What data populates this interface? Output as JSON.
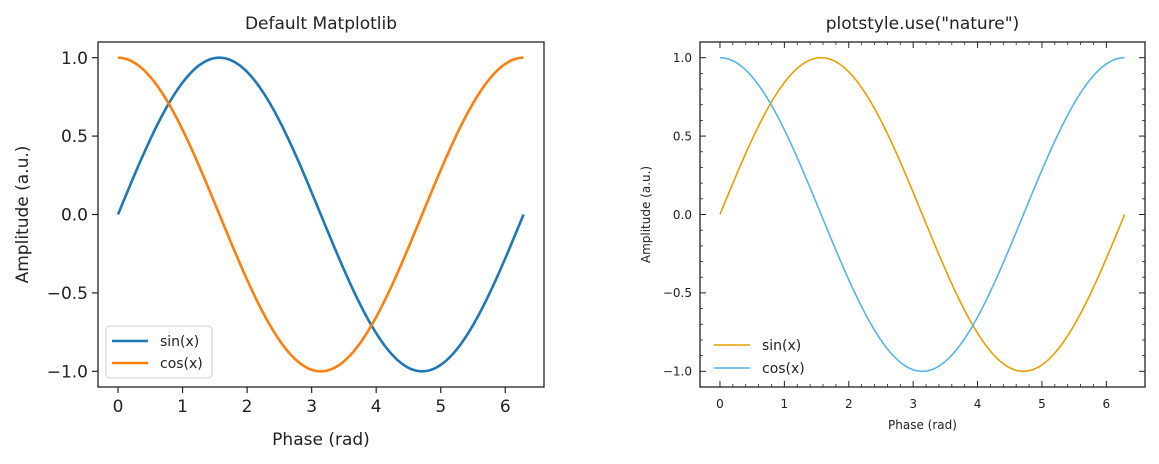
{
  "chart_data": [
    {
      "type": "line",
      "title": "Default Matplotlib",
      "xlabel": "Phase (rad)",
      "ylabel": "Amplitude (a.u.)",
      "xlim": [
        -0.31,
        6.6
      ],
      "ylim": [
        -1.1,
        1.1
      ],
      "xticks": [
        0,
        1,
        2,
        3,
        4,
        5,
        6
      ],
      "xtick_labels": [
        "0",
        "1",
        "2",
        "3",
        "4",
        "5",
        "6"
      ],
      "yticks": [
        1.0,
        0.5,
        0.0,
        -0.5,
        -1.0
      ],
      "ytick_labels": [
        "1.0",
        "0.5",
        "0.0",
        "−0.5",
        "−1.0"
      ],
      "grid": false,
      "legend_position": "lower-left",
      "legend_frame": true,
      "minor_ticks": false,
      "series": [
        {
          "name": "sin(x)",
          "function": "sin",
          "x_range": [
            0,
            6.283
          ],
          "color": "#1f77b4"
        },
        {
          "name": "cos(x)",
          "function": "cos",
          "x_range": [
            0,
            6.283
          ],
          "color": "#ff7f0e"
        }
      ]
    },
    {
      "type": "line",
      "title": "plotstyle.use(\"nature\")",
      "xlabel": "Phase (rad)",
      "ylabel": "Amplitude (a.u.)",
      "xlim": [
        -0.31,
        6.6
      ],
      "ylim": [
        -1.1,
        1.1
      ],
      "xticks": [
        0,
        1,
        2,
        3,
        4,
        5,
        6
      ],
      "xtick_labels": [
        "0",
        "1",
        "2",
        "3",
        "4",
        "5",
        "6"
      ],
      "yticks": [
        1.0,
        0.5,
        0.0,
        -0.5,
        -1.0
      ],
      "ytick_labels": [
        "1.0",
        "0.5",
        "0.0",
        "−0.5",
        "−1.0"
      ],
      "grid": false,
      "legend_position": "lower-left",
      "legend_frame": false,
      "minor_ticks": true,
      "series": [
        {
          "name": "sin(x)",
          "function": "sin",
          "x_range": [
            0,
            6.283
          ],
          "color": "#e69f00"
        },
        {
          "name": "cos(x)",
          "function": "cos",
          "x_range": [
            0,
            6.283
          ],
          "color": "#56b4e9"
        }
      ]
    }
  ]
}
